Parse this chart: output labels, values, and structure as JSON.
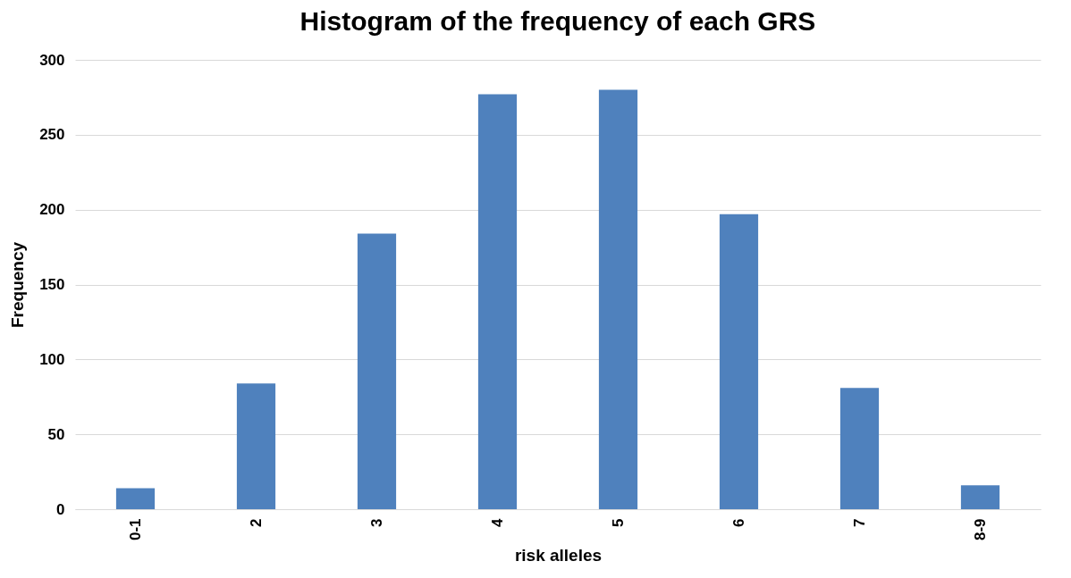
{
  "chart_data": {
    "type": "bar",
    "title": "Histogram of the frequency of each GRS",
    "xlabel": "risk alleles",
    "ylabel": "Frequency",
    "categories": [
      "0-1",
      "2",
      "3",
      "4",
      "5",
      "6",
      "7",
      "8-9"
    ],
    "values": [
      14,
      84,
      184,
      277,
      280,
      197,
      81,
      16
    ],
    "color": "#4f81bd",
    "ylim": [
      0,
      300
    ],
    "yticks": [
      0,
      50,
      100,
      150,
      200,
      250,
      300
    ],
    "grid": "y",
    "legend": false
  }
}
